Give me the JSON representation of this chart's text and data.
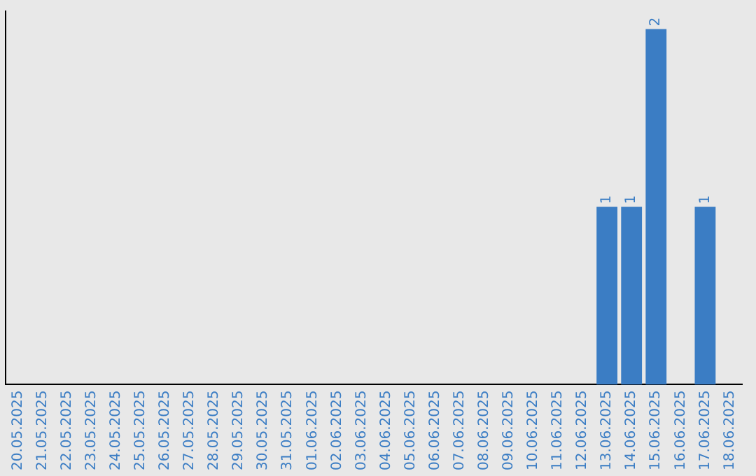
{
  "chart_data": {
    "type": "bar",
    "categories": [
      "20.05.2025",
      "21.05.2025",
      "22.05.2025",
      "23.05.2025",
      "24.05.2025",
      "25.05.2025",
      "26.05.2025",
      "27.05.2025",
      "28.05.2025",
      "29.05.2025",
      "30.05.2025",
      "31.05.2025",
      "01.06.2025",
      "02.06.2025",
      "03.06.2025",
      "04.06.2025",
      "05.06.2025",
      "06.06.2025",
      "07.06.2025",
      "08.06.2025",
      "09.06.2025",
      "10.06.2025",
      "11.06.2025",
      "12.06.2025",
      "13.06.2025",
      "14.06.2025",
      "15.06.2025",
      "16.06.2025",
      "17.06.2025",
      "18.06.2025"
    ],
    "values": [
      null,
      null,
      null,
      null,
      null,
      null,
      null,
      null,
      null,
      null,
      null,
      null,
      null,
      null,
      null,
      null,
      null,
      null,
      null,
      null,
      null,
      null,
      null,
      null,
      1,
      1,
      2,
      null,
      1,
      null
    ],
    "value_labels": [
      null,
      null,
      null,
      null,
      null,
      null,
      null,
      null,
      null,
      null,
      null,
      null,
      null,
      null,
      null,
      null,
      null,
      null,
      null,
      null,
      null,
      null,
      null,
      null,
      "1",
      "1",
      "2",
      null,
      "1",
      null
    ],
    "color": "#3b7dc4",
    "ylim": [
      0,
      2.1
    ],
    "tick_labels": "x",
    "grid": false,
    "legend": false
  }
}
